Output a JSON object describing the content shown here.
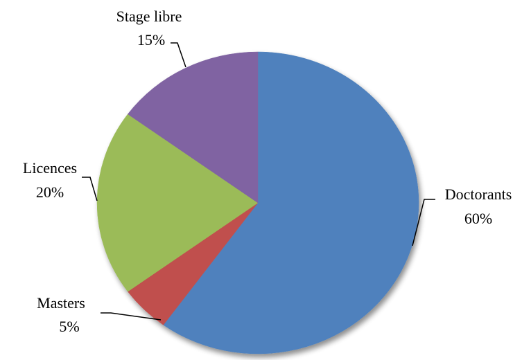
{
  "chart_data": {
    "type": "pie",
    "categories": [
      "Doctorants",
      "Masters",
      "Licences",
      "Stage libre"
    ],
    "values": [
      60,
      5,
      20,
      15
    ],
    "value_labels": [
      "60%",
      "5%",
      "20%",
      "15%"
    ],
    "colors": [
      "#4f81bd",
      "#c0504d",
      "#9bbb59",
      "#8064a2"
    ]
  }
}
